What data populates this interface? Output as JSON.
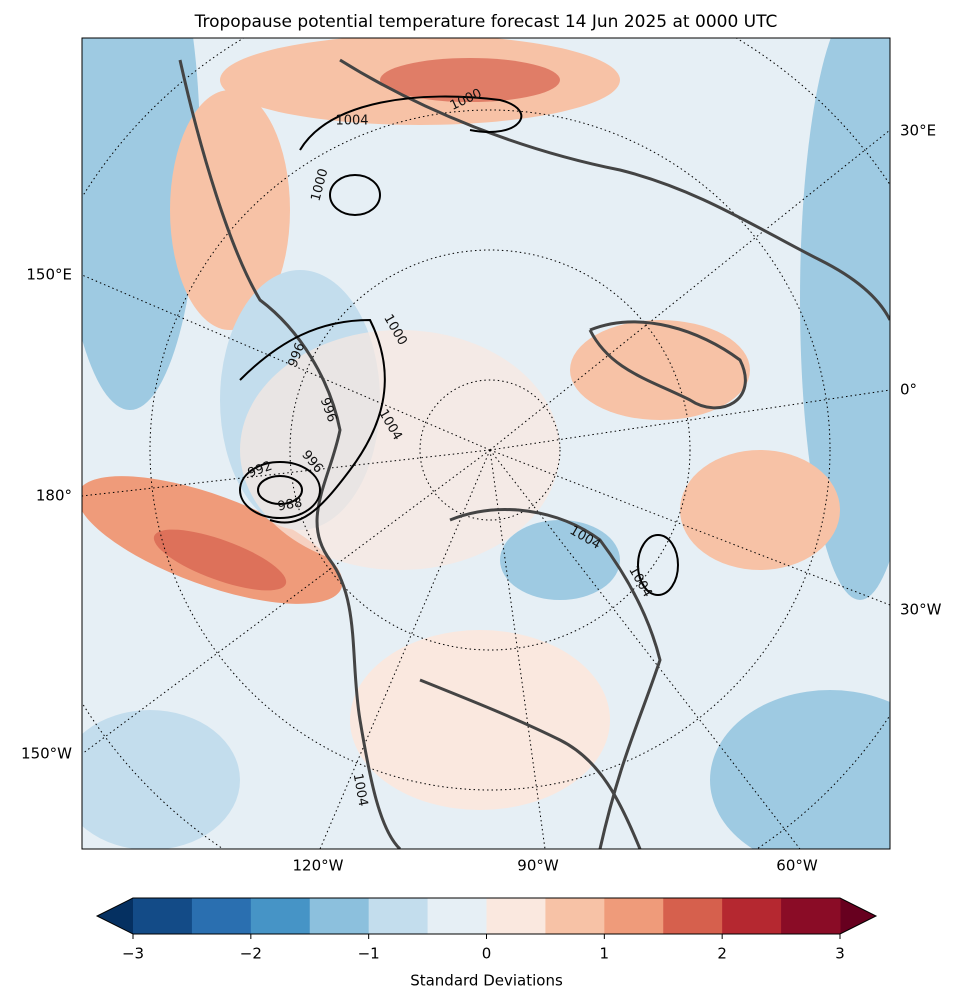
{
  "title": "Tropopause potential temperature forecast 14 Jun 2025 at 0000 UTC",
  "lon_labels": [
    "30°E",
    "150°E",
    "0°",
    "180°",
    "30°W",
    "150°W",
    "120°W",
    "90°W",
    "60°W"
  ],
  "contour_labels": [
    "1004",
    "1000",
    "1000",
    "996",
    "1000",
    "996",
    "1004",
    "992",
    "996",
    "988",
    "1004",
    "1004",
    "1004"
  ],
  "colorbar": {
    "label": "Standard Deviations",
    "lim": [
      -3,
      3
    ],
    "ticks": [
      {
        "value": -3,
        "label": "−3"
      },
      {
        "value": -2,
        "label": "−2"
      },
      {
        "value": -1,
        "label": "−1"
      },
      0,
      1,
      2,
      3
    ],
    "colors": [
      "#134b87",
      "#2a6fb0",
      "#4694c6",
      "#8cc0dd",
      "#c3dded",
      "#e6eff5",
      "#fae8df",
      "#f7c2a6",
      "#ef9b7a",
      "#d6604d",
      "#b52830",
      "#8a0c26"
    ],
    "under_color": "#053061",
    "over_color": "#67001f"
  }
}
